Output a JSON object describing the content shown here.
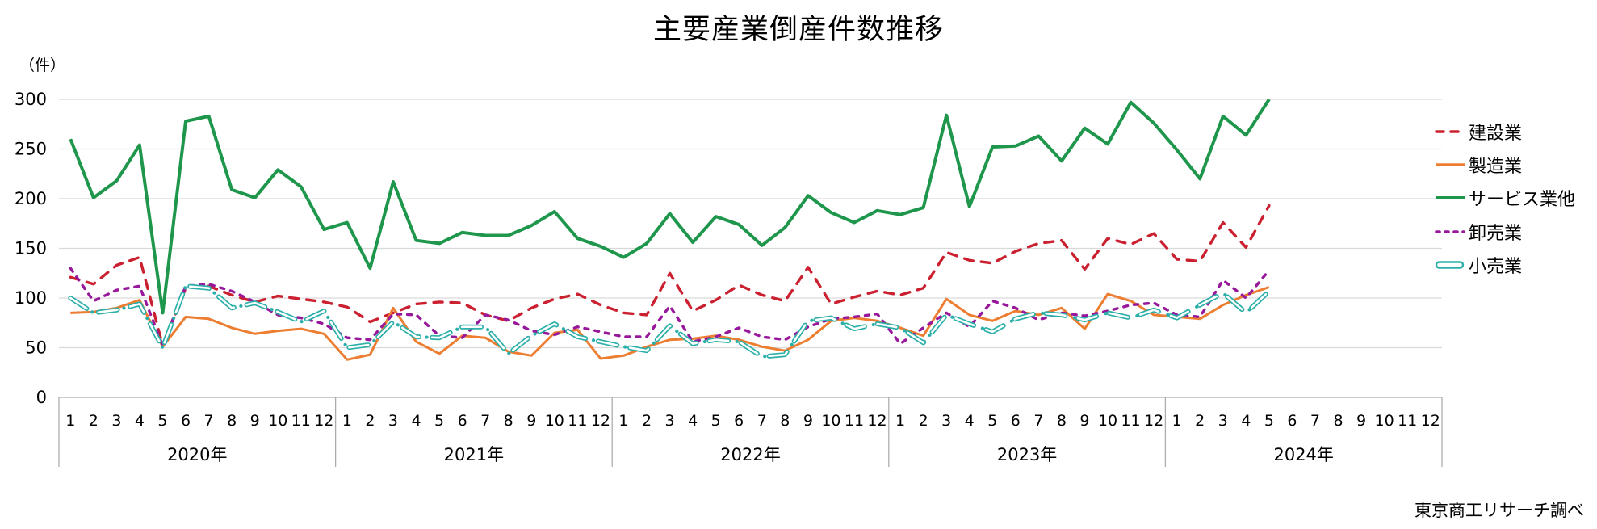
{
  "title": "主要産業倒産件数推移",
  "y_axis_unit_label": "（件）",
  "source_note": "東京商工リサーチ調べ",
  "chart_data": {
    "type": "line",
    "title": "主要産業倒産件数推移",
    "ylabel": "（件）",
    "ylim": [
      0,
      300
    ],
    "ytick_step": 50,
    "y_ticks": [
      0,
      50,
      100,
      150,
      200,
      250,
      300
    ],
    "grid": true,
    "legend_position": "right",
    "x_axis": {
      "month_labels": [
        "1",
        "2",
        "3",
        "4",
        "5",
        "6",
        "7",
        "8",
        "9",
        "10",
        "11",
        "12"
      ],
      "year_labels": [
        "2020年",
        "2021年",
        "2022年",
        "2023年",
        "2024年"
      ],
      "total_slots": 60,
      "data_months": 53,
      "note": "monthly Jan2020–May2024"
    },
    "series": [
      {
        "key": "construction",
        "name": "建設業",
        "color": "#CB2030",
        "style": "dash",
        "values": [
          121,
          114,
          133,
          141,
          52,
          110,
          112,
          103,
          96,
          102,
          99,
          96,
          91,
          76,
          85,
          94,
          96,
          95,
          83,
          77,
          90,
          99,
          104,
          93,
          85,
          83,
          125,
          87,
          98,
          113,
          103,
          97,
          131,
          94,
          101,
          107,
          103,
          110,
          146,
          138,
          135,
          147,
          155,
          158,
          129,
          160,
          154,
          165,
          139,
          137,
          176,
          151,
          193
        ]
      },
      {
        "key": "manufacturing",
        "name": "製造業",
        "color": "#ED7D31",
        "style": "solid",
        "values": [
          85,
          86,
          90,
          98,
          51,
          81,
          79,
          70,
          64,
          67,
          69,
          64,
          38,
          43,
          90,
          56,
          44,
          62,
          60,
          46,
          42,
          65,
          68,
          39,
          42,
          51,
          58,
          59,
          62,
          58,
          51,
          47,
          58,
          77,
          80,
          77,
          70,
          62,
          99,
          83,
          77,
          87,
          83,
          90,
          69,
          104,
          97,
          83,
          81,
          79,
          93,
          103,
          111
        ]
      },
      {
        "key": "services",
        "name": "サービス業他",
        "color": "#1E964B",
        "style": "solid-thick",
        "values": [
          260,
          201,
          218,
          254,
          85,
          278,
          283,
          209,
          201,
          229,
          212,
          169,
          176,
          130,
          217,
          158,
          155,
          166,
          163,
          163,
          173,
          187,
          160,
          152,
          141,
          155,
          185,
          156,
          182,
          174,
          153,
          171,
          203,
          186,
          176,
          188,
          184,
          191,
          284,
          192,
          252,
          253,
          263,
          238,
          271,
          255,
          297,
          276,
          249,
          220,
          283,
          264,
          300
        ]
      },
      {
        "key": "wholesale",
        "name": "卸売業",
        "color": "#97189A",
        "style": "short-dash",
        "values": [
          130,
          97,
          108,
          112,
          52,
          112,
          114,
          107,
          96,
          83,
          80,
          74,
          60,
          58,
          84,
          83,
          62,
          60,
          83,
          78,
          67,
          63,
          71,
          66,
          61,
          61,
          92,
          56,
          61,
          70,
          61,
          58,
          71,
          79,
          81,
          84,
          54,
          70,
          85,
          71,
          97,
          90,
          78,
          85,
          82,
          87,
          93,
          95,
          83,
          81,
          118,
          100,
          128
        ]
      },
      {
        "key": "retail",
        "name": "小売業",
        "color": "#2BAFA8",
        "style": "double-line",
        "values": [
          100,
          85,
          88,
          94,
          50,
          112,
          110,
          90,
          95,
          86,
          76,
          87,
          50,
          53,
          76,
          61,
          60,
          71,
          71,
          44,
          62,
          74,
          61,
          56,
          51,
          47,
          72,
          54,
          58,
          56,
          41,
          43,
          77,
          80,
          69,
          74,
          70,
          55,
          83,
          74,
          66,
          79,
          85,
          83,
          78,
          85,
          80,
          88,
          80,
          93,
          105,
          85,
          107
        ]
      }
    ],
    "style_colors": {
      "gridline": "#D9D9D9",
      "axis_line": "#ADADAD",
      "text": "#000000"
    }
  }
}
